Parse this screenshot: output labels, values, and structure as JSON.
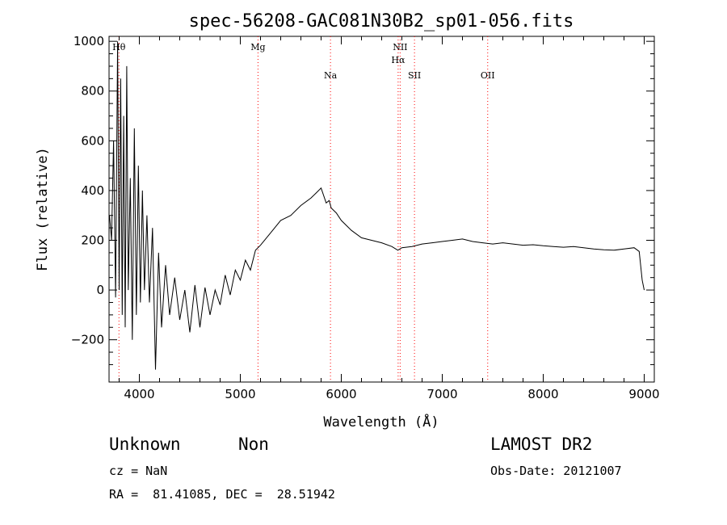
{
  "chart_data": {
    "type": "line",
    "title": "spec-56208-GAC081N30B2_sp01-056.fits",
    "xlabel": "Wavelength (Å)",
    "ylabel": "Flux (relative)",
    "xlim": [
      3700,
      9100
    ],
    "ylim": [
      -370,
      1020
    ],
    "xticks": [
      4000,
      5000,
      6000,
      7000,
      8000,
      9000
    ],
    "yticks": [
      -200,
      0,
      200,
      400,
      600,
      800,
      1000
    ],
    "grid": false,
    "line_color": "#000000",
    "marker_color": "#ff0000",
    "series": [
      {
        "x": [
          3705,
          3725,
          3745,
          3765,
          3785,
          3800,
          3815,
          3830,
          3845,
          3860,
          3875,
          3890,
          3910,
          3930,
          3950,
          3970,
          3990,
          4010,
          4030,
          4050,
          4075,
          4100,
          4130,
          4160,
          4190,
          4220,
          4260,
          4300,
          4350,
          4400,
          4450,
          4500,
          4550,
          4600,
          4650,
          4700,
          4750,
          4800,
          4850,
          4900,
          4950,
          5000,
          5050,
          5100,
          5150,
          5200,
          5300,
          5400,
          5500,
          5600,
          5700,
          5750,
          5800,
          5850,
          5880,
          5900,
          5950,
          6000,
          6100,
          6200,
          6300,
          6400,
          6500,
          6560,
          6600,
          6700,
          6800,
          6900,
          7000,
          7100,
          7200,
          7300,
          7400,
          7500,
          7600,
          7700,
          7800,
          7900,
          8000,
          8100,
          8200,
          8300,
          8400,
          8500,
          8600,
          8700,
          8800,
          8900,
          8950,
          8980,
          9000
        ],
        "y": [
          300,
          200,
          600,
          -30,
          1000,
          0,
          850,
          -100,
          700,
          -150,
          900,
          0,
          450,
          -200,
          650,
          -100,
          500,
          -50,
          400,
          0,
          300,
          -50,
          250,
          -320,
          150,
          -150,
          100,
          -100,
          50,
          -120,
          0,
          -170,
          20,
          -150,
          10,
          -100,
          0,
          -60,
          60,
          -20,
          80,
          40,
          120,
          80,
          160,
          180,
          230,
          280,
          300,
          340,
          370,
          390,
          410,
          350,
          360,
          330,
          310,
          280,
          240,
          210,
          200,
          190,
          175,
          160,
          170,
          175,
          185,
          190,
          195,
          200,
          205,
          195,
          190,
          185,
          190,
          185,
          180,
          182,
          178,
          175,
          172,
          175,
          170,
          165,
          162,
          160,
          165,
          170,
          155,
          40,
          0
        ]
      }
    ],
    "line_markers": [
      {
        "label": "Hθ",
        "x": 3798,
        "row": 1
      },
      {
        "label": "Mg",
        "x": 5175,
        "row": 1
      },
      {
        "label": "Na",
        "x": 5893,
        "row": 3
      },
      {
        "label": "NII",
        "x": 6583,
        "row": 1
      },
      {
        "label": "Hα",
        "x": 6563,
        "row": 2
      },
      {
        "label": "SII",
        "x": 6725,
        "row": 3
      },
      {
        "label": "OII",
        "x": 7450,
        "row": 3
      }
    ]
  },
  "object_info": {
    "class": "Unknown",
    "subclass": "Non",
    "survey": "LAMOST DR2",
    "cz": "cz = NaN",
    "obs_date": "Obs-Date: 20121007",
    "radec": "RA =  81.41085, DEC =  28.51942"
  }
}
